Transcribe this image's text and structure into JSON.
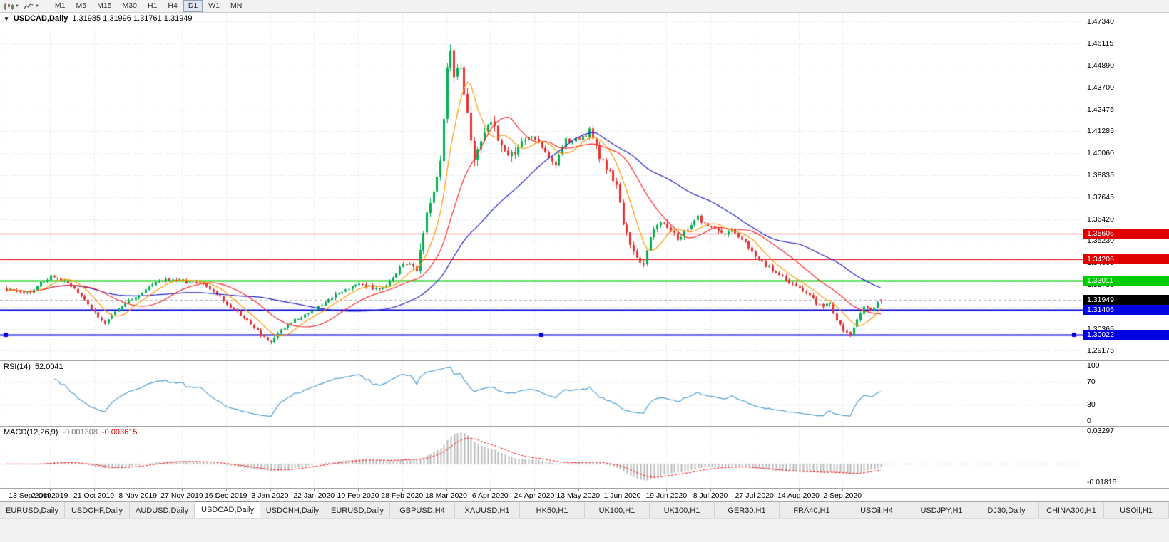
{
  "toolbar": {
    "timeframes": [
      {
        "label": "M1",
        "active": false
      },
      {
        "label": "M5",
        "active": false
      },
      {
        "label": "M15",
        "active": false
      },
      {
        "label": "M30",
        "active": false
      },
      {
        "label": "H1",
        "active": false
      },
      {
        "label": "H4",
        "active": false
      },
      {
        "label": "D1",
        "active": true
      },
      {
        "label": "W1",
        "active": false
      },
      {
        "label": "MN",
        "active": false
      }
    ]
  },
  "chart": {
    "symbol_label": "USDCAD,Daily",
    "ohlc": "1.31985 1.31996 1.31761 1.31949",
    "price_axis": [
      "1.47340",
      "1.46115",
      "1.44890",
      "1.43700",
      "1.42475",
      "1.41285",
      "1.40060",
      "1.38835",
      "1.37645",
      "1.36420",
      "1.35230",
      "1.34005",
      "1.32780",
      "1.31590",
      "1.30365",
      "1.29175"
    ],
    "levels": [
      {
        "value": "1.35606",
        "price": 1.35606,
        "color": "#e00000",
        "width": 1,
        "selected": false
      },
      {
        "value": "1.34206",
        "price": 1.34206,
        "color": "#e00000",
        "width": 1,
        "selected": false
      },
      {
        "value": "1.33011",
        "price": 1.33011,
        "color": "#00cc00",
        "width": 2,
        "selected": false
      },
      {
        "value": "1.31405",
        "price": 1.31405,
        "color": "#0000e0",
        "width": 2,
        "selected": false
      },
      {
        "value": "1.30022",
        "price": 1.30022,
        "color": "#0000e0",
        "width": 2,
        "selected": true
      }
    ],
    "current_price": {
      "value": "1.31949",
      "price": 1.31949,
      "color": "#000000"
    }
  },
  "rsi": {
    "title": "RSI(14)",
    "value": "52.0041",
    "axis": [
      "100",
      "70",
      "30",
      "0"
    ],
    "levels": [
      70,
      30
    ],
    "line_color": "#4e9fd4"
  },
  "macd": {
    "title": "MACD(12,26,9)",
    "value_main": "-0.001308",
    "value_signal": "-0.003615",
    "axis_top": "0.03297",
    "axis_bottom": "-0.01815",
    "histogram_color": "#b8b8b8",
    "signal_color": "#ff0000"
  },
  "date_axis": [
    "13 Sep 2019",
    "2 Oct 2019",
    "21 Oct 2019",
    "8 Nov 2019",
    "27 Nov 2019",
    "16 Dec 2019",
    "3 Jan 2020",
    "22 Jan 2020",
    "10 Feb 2020",
    "28 Feb 2020",
    "18 Mar 2020",
    "6 Apr 2020",
    "24 Apr 2020",
    "13 May 2020",
    "1 Jun 2020",
    "19 Jun 2020",
    "8 Jul 2020",
    "27 Jul 2020",
    "14 Aug 2020",
    "2 Sep 2020"
  ],
  "tabs": [
    {
      "label": "EURUSD,Daily",
      "active": false
    },
    {
      "label": "USDCHF,Daily",
      "active": false
    },
    {
      "label": "AUDUSD,Daily",
      "active": false
    },
    {
      "label": "USDCAD,Daily",
      "active": true
    },
    {
      "label": "USDCNH,Daily",
      "active": false
    },
    {
      "label": "EURUSD,Daily",
      "active": false
    },
    {
      "label": "GBPUSD,H4",
      "active": false
    },
    {
      "label": "XAUUSD,H1",
      "active": false
    },
    {
      "label": "HK50,H1",
      "active": false
    },
    {
      "label": "UK100,H1",
      "active": false
    },
    {
      "label": "UK100,H1",
      "active": false
    },
    {
      "label": "GER30,H1",
      "active": false
    },
    {
      "label": "FRA40,H1",
      "active": false
    },
    {
      "label": "USOil,H4",
      "active": false
    },
    {
      "label": "USDJPY,H1",
      "active": false
    },
    {
      "label": "DJ30,Daily",
      "active": false
    },
    {
      "label": "CHINA300,H1",
      "active": false
    },
    {
      "label": "USOil,H1",
      "active": false
    }
  ],
  "chart_data": {
    "type": "candlestick",
    "symbol": "USDCAD",
    "timeframe": "Daily",
    "bars": 259,
    "bars_per_label": 13,
    "up_color": "#00b050",
    "down_color": "#e63232",
    "last_bar": {
      "o": 1.31985,
      "h": 1.31996,
      "l": 1.31761,
      "c": 1.31949
    },
    "price_range": [
      1.29175,
      1.4734
    ],
    "waypoints": [
      [
        0,
        1.3255
      ],
      [
        6,
        1.3232
      ],
      [
        13,
        1.3328
      ],
      [
        18,
        1.3292
      ],
      [
        22,
        1.3212
      ],
      [
        26,
        1.3128
      ],
      [
        29,
        1.3062
      ],
      [
        33,
        1.3148
      ],
      [
        39,
        1.3228
      ],
      [
        46,
        1.3308
      ],
      [
        52,
        1.3302
      ],
      [
        57,
        1.3288
      ],
      [
        61,
        1.3242
      ],
      [
        65,
        1.3172
      ],
      [
        70,
        1.3102
      ],
      [
        75,
        1.3005
      ],
      [
        78,
        1.2962
      ],
      [
        82,
        1.3048
      ],
      [
        86,
        1.3098
      ],
      [
        91,
        1.314
      ],
      [
        97,
        1.3228
      ],
      [
        104,
        1.329
      ],
      [
        109,
        1.3252
      ],
      [
        113,
        1.3292
      ],
      [
        117,
        1.3398
      ],
      [
        121,
        1.3382
      ],
      [
        124,
        1.3688
      ],
      [
        126,
        1.3778
      ],
      [
        128,
        1.3948
      ],
      [
        129,
        1.4198
      ],
      [
        130,
        1.4496
      ],
      [
        131,
        1.4598
      ],
      [
        132,
        1.4405
      ],
      [
        134,
        1.4498
      ],
      [
        136,
        1.4205
      ],
      [
        138,
        1.3992
      ],
      [
        140,
        1.4098
      ],
      [
        143,
        1.4198
      ],
      [
        146,
        1.4032
      ],
      [
        149,
        1.4002
      ],
      [
        152,
        1.4078
      ],
      [
        156,
        1.4088
      ],
      [
        159,
        1.4012
      ],
      [
        162,
        1.3952
      ],
      [
        165,
        1.4078
      ],
      [
        169,
        1.4078
      ],
      [
        172,
        1.4128
      ],
      [
        175,
        1.3982
      ],
      [
        178,
        1.3902
      ],
      [
        180,
        1.3832
      ],
      [
        182,
        1.3612
      ],
      [
        184,
        1.3502
      ],
      [
        186,
        1.3422
      ],
      [
        188,
        1.3392
      ],
      [
        190,
        1.3548
      ],
      [
        192,
        1.3618
      ],
      [
        195,
        1.3598
      ],
      [
        198,
        1.3532
      ],
      [
        201,
        1.3598
      ],
      [
        204,
        1.3648
      ],
      [
        208,
        1.3598
      ],
      [
        211,
        1.3562
      ],
      [
        214,
        1.3578
      ],
      [
        217,
        1.3532
      ],
      [
        221,
        1.3432
      ],
      [
        224,
        1.3382
      ],
      [
        227,
        1.3352
      ],
      [
        230,
        1.3302
      ],
      [
        234,
        1.3262
      ],
      [
        237,
        1.3222
      ],
      [
        240,
        1.3162
      ],
      [
        243,
        1.3172
      ],
      [
        245,
        1.3092
      ],
      [
        247,
        1.3032
      ],
      [
        249,
        1.2992
      ],
      [
        251,
        1.3078
      ],
      [
        253,
        1.3168
      ],
      [
        255,
        1.3128
      ],
      [
        257,
        1.3185
      ],
      [
        258,
        1.31949
      ]
    ],
    "moving_averages": [
      {
        "period": 45,
        "color": "#2020cc"
      },
      {
        "period": 20,
        "color": "#ff2a2a"
      },
      {
        "period": 8,
        "color": "#ff9900"
      }
    ]
  }
}
